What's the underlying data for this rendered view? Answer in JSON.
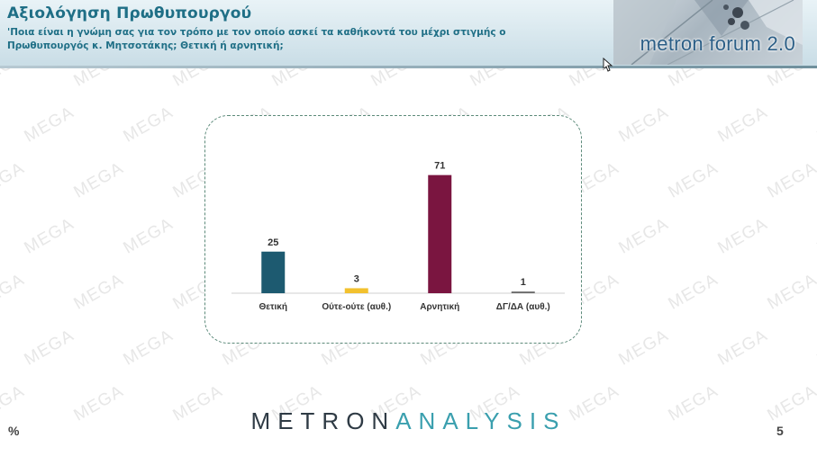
{
  "header": {
    "title": "Αξιολόγηση Πρωθυπουργού",
    "question": "'Ποια είναι η γνώμη σας για τον τρόπο με τον οποίο ασκεί τα καθήκοντά του μέχρι στιγμής ο Πρωθυπουργός κ. Μητσοτάκης; Θετική ή αρνητική;",
    "logo_text": "metron forum 2.0"
  },
  "watermark_text": "MEGA",
  "chart_data": {
    "type": "bar",
    "categories": [
      "Θετική",
      "Ούτε-ούτε (αυθ.)",
      "Αρνητική",
      "ΔΓ/ΔΑ (αυθ.)"
    ],
    "values": [
      25,
      3,
      71,
      1
    ],
    "colors": [
      "#1d5a70",
      "#f2c12e",
      "#7a1540",
      "#6b6b6b"
    ],
    "title": "",
    "xlabel": "",
    "ylabel": "",
    "ylim": [
      0,
      80
    ],
    "grid": false,
    "legend": "none"
  },
  "footer": {
    "logo_part1": "METRON",
    "logo_part2": "ANALYSIS",
    "unit": "%",
    "page_number": "5"
  }
}
